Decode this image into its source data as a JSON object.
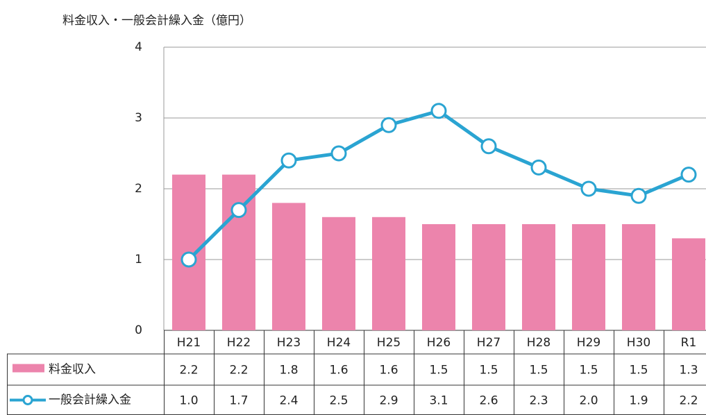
{
  "chart_data": {
    "type": "bar_line_table",
    "title": "料金収入・一般会計繰入金（億円）",
    "categories": [
      "H21",
      "H22",
      "H23",
      "H24",
      "H25",
      "H26",
      "H27",
      "H28",
      "H29",
      "H30",
      "R1"
    ],
    "series": [
      {
        "name": "料金収入",
        "type": "bar",
        "color": "#ec84ac",
        "values": [
          2.2,
          2.2,
          1.8,
          1.6,
          1.6,
          1.5,
          1.5,
          1.5,
          1.5,
          1.5,
          1.3
        ]
      },
      {
        "name": "一般会計繰入金",
        "type": "line",
        "color": "#2aa4d2",
        "values": [
          1.0,
          1.7,
          2.4,
          2.5,
          2.9,
          3.1,
          2.6,
          2.3,
          2.0,
          1.9,
          2.2
        ],
        "value_labels": [
          "1.0",
          "1.7",
          "2.4",
          "2.5",
          "2.9",
          "3.1",
          "2.6",
          "2.3",
          "2.0",
          "1.9",
          "2.2"
        ]
      }
    ],
    "ylim": [
      0,
      4
    ],
    "yticks": [
      0,
      1,
      2,
      3,
      4
    ],
    "grid": true
  }
}
